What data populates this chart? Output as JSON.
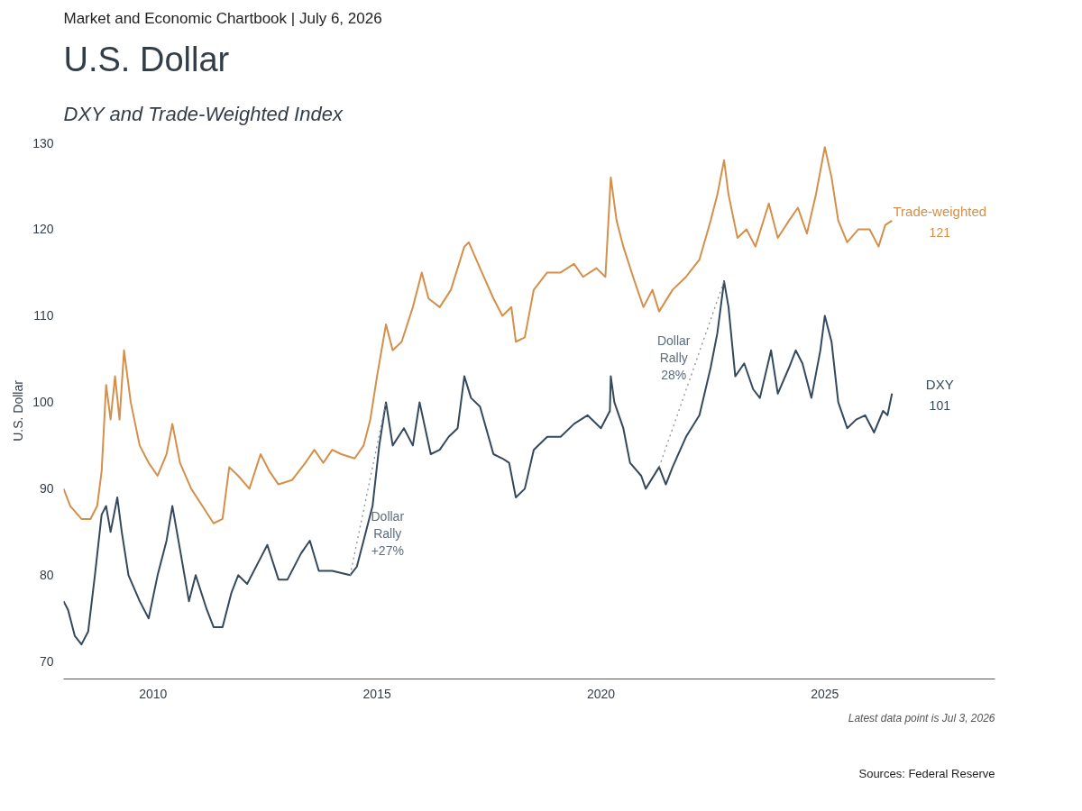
{
  "chart_data": {
    "type": "line",
    "title": "U.S. Dollar",
    "subtitle": "DXY and Trade-Weighted Index",
    "ylabel": "U.S. Dollar",
    "xlim": [
      2008,
      2028.8
    ],
    "xticks": [
      2010,
      2015,
      2020,
      2025
    ],
    "ylim": [
      68,
      130
    ],
    "yticks": [
      70,
      80,
      90,
      100,
      110,
      120,
      130
    ],
    "grid": false,
    "marker": "none",
    "annotations": [
      "Market and Economic Chartbook | July 6, 2026",
      "Latest data point is Jul 3, 2026",
      "Sources: Federal Reserve",
      {
        "text": "Dollar Rally +27%",
        "x": 2014.59,
        "y": 84.8
      },
      {
        "text": "Dollar Rally 28%",
        "x": 2022.15,
        "y": 105.1
      },
      {
        "text": "121",
        "x": 2026.5,
        "y": 121
      },
      {
        "text": "101",
        "x": 2026.5,
        "y": 101
      }
    ],
    "series": [
      {
        "name": "Trade-weighted",
        "color": "#d4904a",
        "line_style": "solid",
        "x": [
          2008.0,
          2008.15,
          2008.4,
          2008.6,
          2008.75,
          2008.85,
          2008.95,
          2009.05,
          2009.15,
          2009.25,
          2009.35,
          2009.5,
          2009.7,
          2009.9,
          2010.1,
          2010.3,
          2010.43,
          2010.6,
          2010.85,
          2011.1,
          2011.35,
          2011.55,
          2011.7,
          2011.9,
          2012.15,
          2012.4,
          2012.6,
          2012.8,
          2013.1,
          2013.4,
          2013.6,
          2013.8,
          2014.0,
          2014.2,
          2014.5,
          2014.7,
          2014.85,
          2015.0,
          2015.2,
          2015.35,
          2015.55,
          2015.8,
          2016.0,
          2016.15,
          2016.4,
          2016.65,
          2016.95,
          2017.05,
          2017.3,
          2017.6,
          2017.8,
          2018.0,
          2018.1,
          2018.3,
          2018.5,
          2018.8,
          2019.1,
          2019.4,
          2019.6,
          2019.9,
          2020.1,
          2020.22,
          2020.35,
          2020.5,
          2020.75,
          2020.95,
          2021.15,
          2021.3,
          2021.6,
          2021.9,
          2022.2,
          2022.45,
          2022.6,
          2022.75,
          2022.85,
          2023.05,
          2023.25,
          2023.45,
          2023.75,
          2023.95,
          2024.2,
          2024.4,
          2024.6,
          2024.8,
          2025.0,
          2025.15,
          2025.3,
          2025.5,
          2025.75,
          2026.0,
          2026.2,
          2026.35,
          2026.5
        ],
        "values": [
          90,
          88,
          86.5,
          86.5,
          88,
          92,
          102,
          98,
          103,
          98,
          106,
          100,
          95,
          93,
          91.5,
          94,
          97.5,
          93,
          90,
          88,
          86,
          86.5,
          92.5,
          91.5,
          90,
          94,
          92,
          90.5,
          91,
          93,
          94.5,
          93,
          94.5,
          94,
          93.5,
          95,
          98,
          103,
          109,
          106,
          107,
          111,
          115,
          112,
          111,
          113,
          118,
          118.5,
          115.5,
          112,
          110,
          111,
          107,
          107.5,
          113,
          115,
          115,
          116,
          114.5,
          115.5,
          114.5,
          126,
          121,
          118,
          114,
          111,
          113,
          110.5,
          113,
          114.5,
          116.5,
          121,
          124,
          128,
          124,
          119,
          120,
          118,
          123,
          119,
          121,
          122.5,
          119.5,
          124,
          129.5,
          126,
          121,
          118.5,
          120,
          120,
          118,
          120.5,
          121
        ]
      },
      {
        "name": "DXY",
        "color": "#34495e",
        "line_style": "solid",
        "x": [
          2008.0,
          2008.1,
          2008.25,
          2008.4,
          2008.55,
          2008.7,
          2008.85,
          2008.95,
          2009.05,
          2009.2,
          2009.3,
          2009.45,
          2009.7,
          2009.9,
          2010.1,
          2010.3,
          2010.43,
          2010.6,
          2010.8,
          2010.95,
          2011.2,
          2011.35,
          2011.55,
          2011.75,
          2011.9,
          2012.1,
          2012.4,
          2012.55,
          2012.8,
          2013.0,
          2013.3,
          2013.5,
          2013.7,
          2014.0,
          2014.4,
          2014.55,
          2014.7,
          2014.9,
          2015.05,
          2015.2,
          2015.35,
          2015.6,
          2015.8,
          2015.95,
          2016.2,
          2016.4,
          2016.6,
          2016.8,
          2016.95,
          2017.1,
          2017.3,
          2017.6,
          2017.8,
          2017.95,
          2018.1,
          2018.3,
          2018.5,
          2018.8,
          2019.1,
          2019.4,
          2019.7,
          2020.0,
          2020.2,
          2020.22,
          2020.3,
          2020.5,
          2020.65,
          2020.9,
          2021.0,
          2021.3,
          2021.45,
          2021.6,
          2021.9,
          2022.2,
          2022.45,
          2022.6,
          2022.75,
          2022.85,
          2023.0,
          2023.2,
          2023.4,
          2023.55,
          2023.8,
          2023.95,
          2024.2,
          2024.35,
          2024.5,
          2024.7,
          2024.9,
          2025.0,
          2025.15,
          2025.3,
          2025.5,
          2025.7,
          2025.9,
          2026.1,
          2026.3,
          2026.4,
          2026.5
        ],
        "values": [
          77,
          76,
          73,
          72,
          73.5,
          80,
          87,
          88,
          85,
          89,
          85,
          80,
          77,
          75,
          80,
          84,
          88,
          83,
          77,
          80,
          76,
          74,
          74,
          78,
          80,
          79,
          82,
          83.5,
          79.5,
          79.5,
          82.5,
          84,
          80.5,
          80.5,
          80,
          81,
          84,
          88,
          95,
          100,
          95,
          97,
          95,
          100,
          94,
          94.5,
          96,
          97,
          103,
          100.5,
          99.5,
          94,
          93.5,
          93,
          89,
          90,
          94.5,
          96,
          96,
          97.5,
          98.5,
          97,
          99,
          103,
          100,
          97,
          93,
          91.5,
          90,
          92.5,
          90.5,
          92.5,
          96,
          98.5,
          104,
          108,
          114,
          111,
          103,
          104.5,
          101.5,
          100.5,
          106,
          101,
          104,
          106,
          104.5,
          100.5,
          106,
          110,
          107,
          100,
          97,
          98,
          98.5,
          96.5,
          99,
          98.5,
          101
        ]
      },
      {
        "type": "line",
        "color": "#8a8f96",
        "line_style": "dotted",
        "x": [
          2014.4,
          2015.2
        ],
        "values": [
          80,
          100
        ]
      },
      {
        "type": "line",
        "color": "#8a8f96",
        "line_style": "dotted",
        "x": [
          2021.3,
          2022.75
        ],
        "values": [
          92.5,
          114
        ]
      }
    ]
  }
}
